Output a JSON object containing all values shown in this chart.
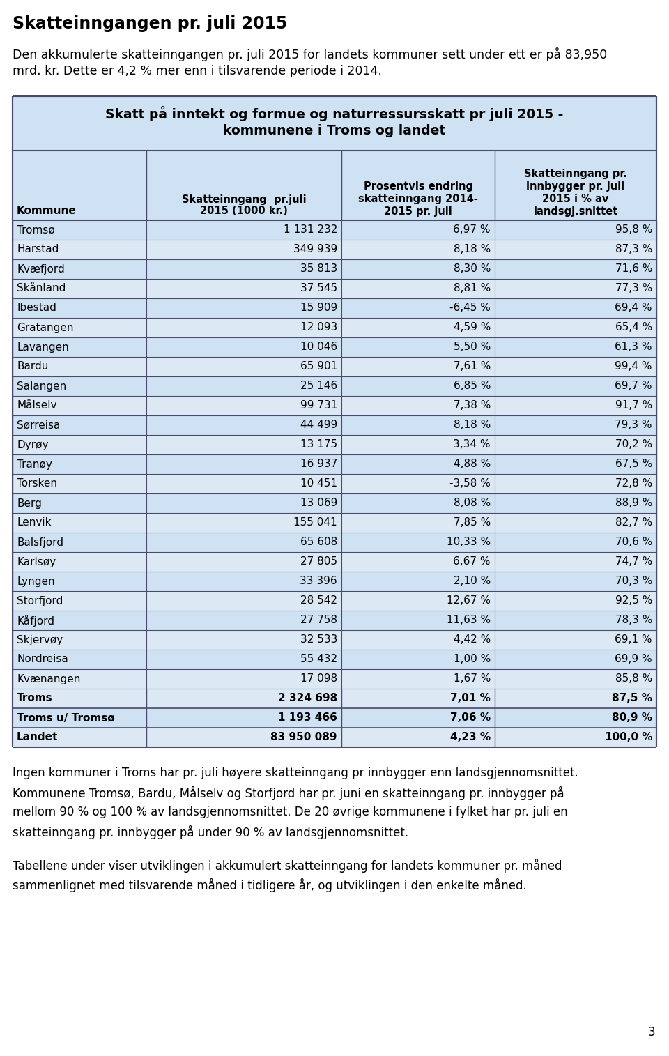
{
  "title_main": "Skatteinngangen pr. juli 2015",
  "intro_line1": "Den akkumulerte skatteinngangen pr. juli 2015 for landets kommuner sett under ett er på 83,950",
  "intro_line2": "mrd. kr. Dette er 4,2 % mer enn i tilsvarende periode i 2014.",
  "table_title_line1": "Skatt på inntekt og formue og naturressursskatt pr juli 2015 -",
  "table_title_line2": "kommunene i Troms og landet",
  "rows": [
    [
      "Tromsø",
      "1 131 232",
      "6,97 %",
      "95,8 %"
    ],
    [
      "Harstad",
      "349 939",
      "8,18 %",
      "87,3 %"
    ],
    [
      "Kvæfjord",
      "35 813",
      "8,30 %",
      "71,6 %"
    ],
    [
      "Skånland",
      "37 545",
      "8,81 %",
      "77,3 %"
    ],
    [
      "Ibestad",
      "15 909",
      "-6,45 %",
      "69,4 %"
    ],
    [
      "Gratangen",
      "12 093",
      "4,59 %",
      "65,4 %"
    ],
    [
      "Lavangen",
      "10 046",
      "5,50 %",
      "61,3 %"
    ],
    [
      "Bardu",
      "65 901",
      "7,61 %",
      "99,4 %"
    ],
    [
      "Salangen",
      "25 146",
      "6,85 %",
      "69,7 %"
    ],
    [
      "Målselv",
      "99 731",
      "7,38 %",
      "91,7 %"
    ],
    [
      "Sørreisa",
      "44 499",
      "8,18 %",
      "79,3 %"
    ],
    [
      "Dyrøy",
      "13 175",
      "3,34 %",
      "70,2 %"
    ],
    [
      "Tranøy",
      "16 937",
      "4,88 %",
      "67,5 %"
    ],
    [
      "Torsken",
      "10 451",
      "-3,58 %",
      "72,8 %"
    ],
    [
      "Berg",
      "13 069",
      "8,08 %",
      "88,9 %"
    ],
    [
      "Lenvik",
      "155 041",
      "7,85 %",
      "82,7 %"
    ],
    [
      "Balsfjord",
      "65 608",
      "10,33 %",
      "70,6 %"
    ],
    [
      "Karlsøy",
      "27 805",
      "6,67 %",
      "74,7 %"
    ],
    [
      "Lyngen",
      "33 396",
      "2,10 %",
      "70,3 %"
    ],
    [
      "Storfjord",
      "28 542",
      "12,67 %",
      "92,5 %"
    ],
    [
      "Kåfjord",
      "27 758",
      "11,63 %",
      "78,3 %"
    ],
    [
      "Skjervøy",
      "32 533",
      "4,42 %",
      "69,1 %"
    ],
    [
      "Nordreisa",
      "55 432",
      "1,00 %",
      "69,9 %"
    ],
    [
      "Kvænangen",
      "17 098",
      "1,67 %",
      "85,8 %"
    ]
  ],
  "bold_rows": [
    [
      "Troms",
      "2 324 698",
      "7,01 %",
      "87,5 %"
    ],
    [
      "Troms u/ Tromsø",
      "1 193 466",
      "7,06 %",
      "80,9 %"
    ],
    [
      "Landet",
      "83 950 089",
      "4,23 %",
      "100,0 %"
    ]
  ],
  "footer1_lines": [
    "Ingen kommuner i Troms har pr. juli høyere skatteinngang pr innbygger enn landsgjennomsnittet.",
    "Kommunene Tromsø, Bardu, Målselv og Storfjord har pr. juni en skatteinngang pr. innbygger på",
    "mellom 90 % og 100 % av landsgjennomsnittet. De 20 øvrige kommunene i fylket har pr. juli en",
    "skatteinngang pr. innbygger på under 90 % av landsgjennomsnittet."
  ],
  "footer2_lines": [
    "Tabellene under viser utviklingen i akkumulert skatteinngang for landets kommuner pr. måned",
    "sammenlignet med tilsvarende måned i tidligere år, og utviklingen i den enkelte måned."
  ],
  "page_number": "3",
  "table_bg": "#cfe2f3",
  "row_bg_alt": "#dce9f5",
  "border_color": "#4a4a6a",
  "text_color": "#000000"
}
